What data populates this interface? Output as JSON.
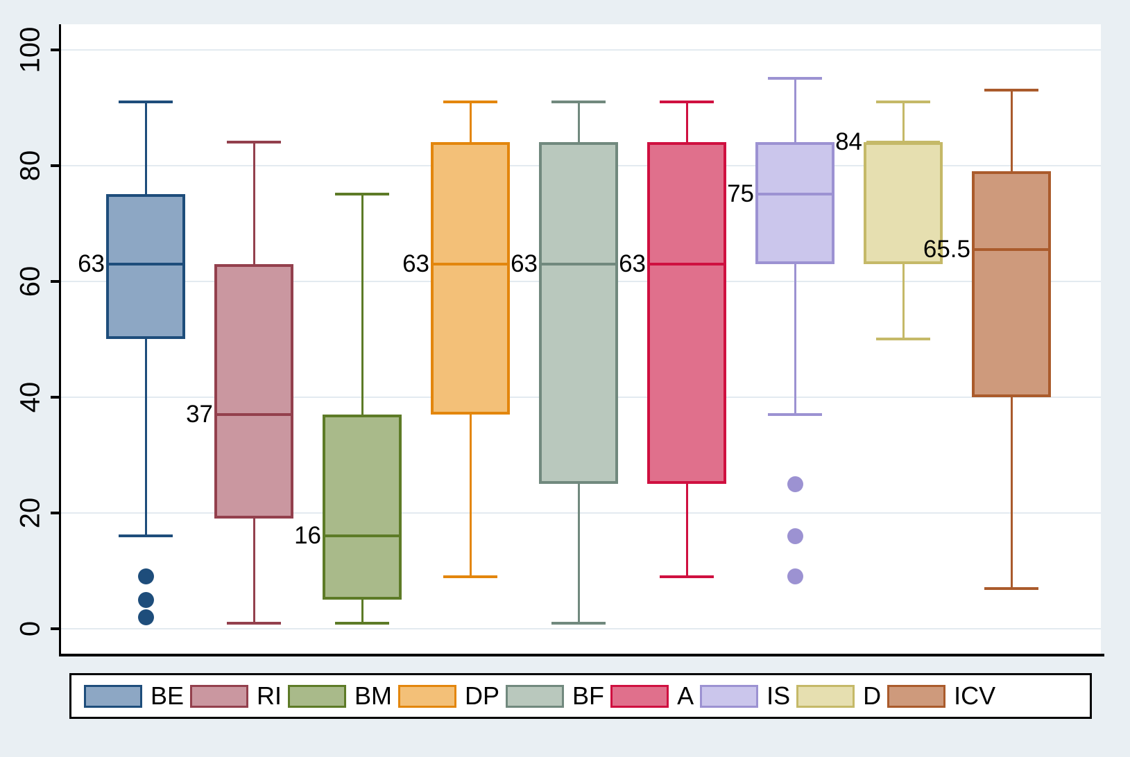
{
  "chart_data": {
    "type": "box",
    "title": "",
    "xlabel": "",
    "ylabel": "",
    "ylim": [
      0,
      100
    ],
    "yticks": [
      0,
      20,
      40,
      60,
      80,
      100
    ],
    "grid": "horizontal",
    "legend_position": "bottom",
    "series": [
      {
        "name": "BE",
        "whisker_low": 16,
        "q1": 50,
        "median": 63,
        "q3": 75,
        "whisker_high": 91,
        "outliers": [
          9,
          5,
          2
        ],
        "median_label": "63",
        "fill": "#8da7c4",
        "border": "#1e4d7b"
      },
      {
        "name": "RI",
        "whisker_low": 1,
        "q1": 19,
        "median": 37,
        "q3": 63,
        "whisker_high": 84,
        "outliers": [],
        "median_label": "37",
        "fill": "#ca97a0",
        "border": "#93404d"
      },
      {
        "name": "BM",
        "whisker_low": 1,
        "q1": 5,
        "median": 16,
        "q3": 37,
        "whisker_high": 75,
        "outliers": [],
        "median_label": "16",
        "fill": "#a9ba8a",
        "border": "#5d7b27"
      },
      {
        "name": "DP",
        "whisker_low": 9,
        "q1": 37,
        "median": 63,
        "q3": 84,
        "whisker_high": 91,
        "outliers": [],
        "median_label": "63",
        "fill": "#f3c078",
        "border": "#e3860d"
      },
      {
        "name": "BF",
        "whisker_low": 1,
        "q1": 25,
        "median": 63,
        "q3": 84,
        "whisker_high": 91,
        "outliers": [],
        "median_label": "63",
        "fill": "#b9c8bd",
        "border": "#71897e"
      },
      {
        "name": "A",
        "whisker_low": 9,
        "q1": 25,
        "median": 63,
        "q3": 84,
        "whisker_high": 91,
        "outliers": [],
        "median_label": "63",
        "fill": "#e0708c",
        "border": "#cf1040"
      },
      {
        "name": "IS",
        "whisker_low": 37,
        "q1": 63,
        "median": 75,
        "q3": 84,
        "whisker_high": 95,
        "outliers": [
          25,
          16,
          9
        ],
        "median_label": "75",
        "fill": "#cbc6ec",
        "border": "#9c92d2"
      },
      {
        "name": "D",
        "whisker_low": 50,
        "q1": 63,
        "median": 84,
        "q3": 84,
        "whisker_high": 91,
        "outliers": [],
        "median_label": "84",
        "fill": "#e6dfb0",
        "border": "#c5b968"
      },
      {
        "name": "ICV",
        "whisker_low": 7,
        "q1": 40,
        "median": 65.5,
        "q3": 79,
        "whisker_high": 93,
        "outliers": [],
        "median_label": "65.5",
        "fill": "#ce9a7c",
        "border": "#aa5b2c"
      }
    ],
    "legend": [
      "BE",
      "RI",
      "BM",
      "DP",
      "BF",
      "A",
      "IS",
      "D",
      "ICV"
    ]
  },
  "colors": {
    "background": "#e9eff3",
    "plot_background": "#ffffff",
    "gridline": "#e3eaf0",
    "axis": "#000000",
    "text": "#000000",
    "legend_background": "#ffffff",
    "legend_border": "#000000"
  }
}
